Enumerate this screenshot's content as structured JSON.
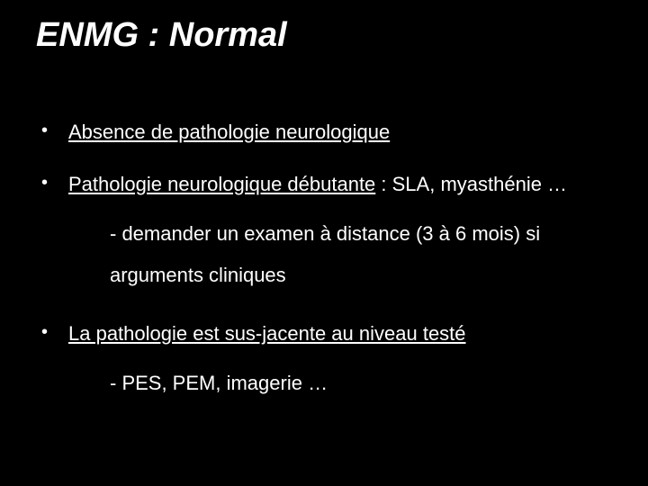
{
  "background_color": "#000000",
  "text_color": "#ffffff",
  "font_family": "Comic Sans MS",
  "title": {
    "text": "ENMG : Normal",
    "fontsize": 38,
    "bold": true,
    "italic": true
  },
  "body_fontsize": 22,
  "bullets": [
    {
      "line_underlined": "Absence de pathologie neurologique",
      "line_extra": "",
      "sub": ""
    },
    {
      "line_underlined": "Pathologie neurologique débutante",
      "line_extra": " : SLA, myasthénie …",
      "sub": "- demander un examen à distance (3 à 6 mois) si arguments cliniques"
    },
    {
      "line_underlined": "La pathologie est sus-jacente au niveau testé",
      "line_extra": "",
      "sub": "- PES, PEM, imagerie …"
    }
  ]
}
